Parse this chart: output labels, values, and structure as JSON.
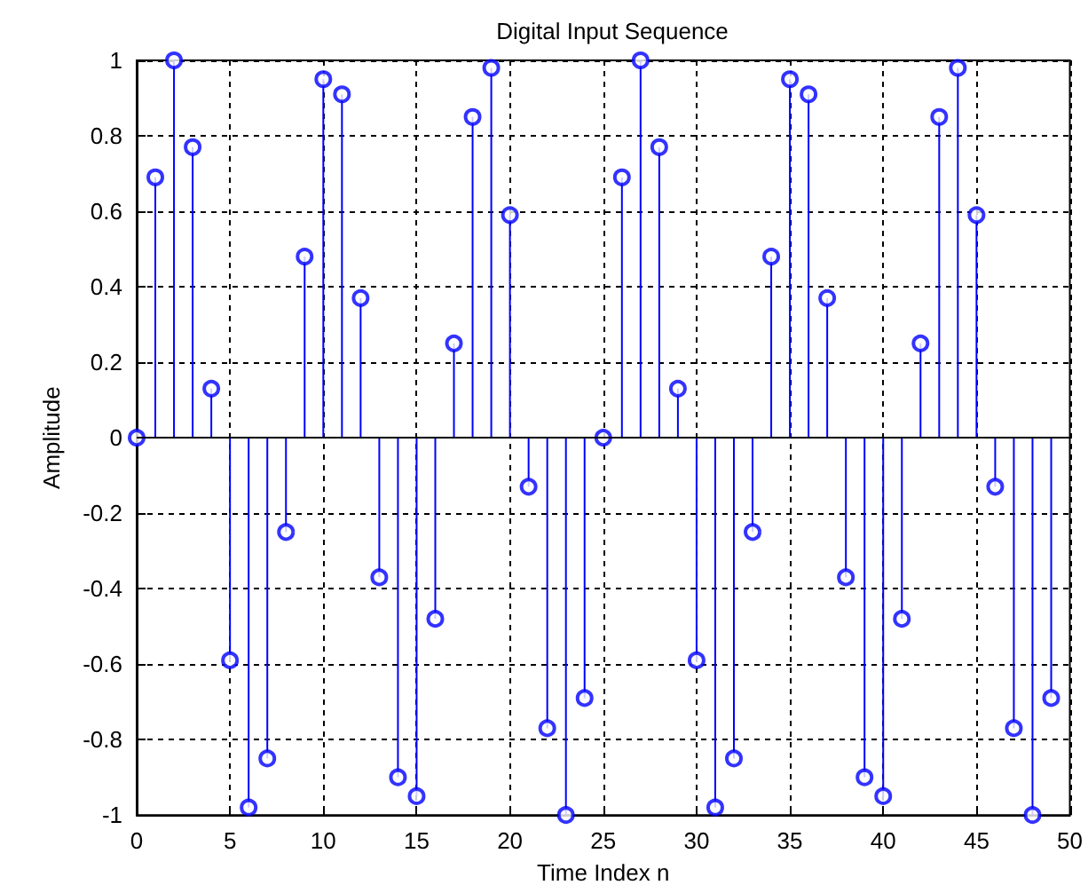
{
  "chart_data": {
    "type": "lollipop",
    "title": "Digital Input Sequence",
    "xlabel": "Time Index n",
    "ylabel": "Amplitude",
    "x": [
      0,
      1,
      2,
      3,
      4,
      5,
      6,
      7,
      8,
      9,
      10,
      11,
      12,
      13,
      14,
      15,
      16,
      17,
      18,
      19,
      20,
      21,
      22,
      23,
      24,
      25,
      26,
      27,
      28,
      29,
      30,
      31,
      32,
      33,
      34,
      35,
      36,
      37,
      38,
      39,
      40,
      41,
      42,
      43,
      44,
      45,
      46,
      47,
      48,
      49
    ],
    "series": [
      {
        "color": "#0000ff",
        "values": [
          0,
          0.69,
          1.0,
          0.77,
          0.13,
          -0.59,
          -0.98,
          -0.85,
          -0.25,
          0.48,
          0.95,
          0.91,
          0.37,
          -0.37,
          -0.9,
          -0.95,
          -0.48,
          0.25,
          0.85,
          0.98,
          0.59,
          -0.13,
          -0.77,
          -1.0,
          -0.69,
          0,
          0.69,
          1.0,
          0.77,
          0.13,
          -0.59,
          -0.98,
          -0.85,
          -0.25,
          0.48,
          0.95,
          0.91,
          0.37,
          -0.37,
          -0.9,
          -0.95,
          -0.48,
          0.25,
          0.85,
          0.98,
          0.59,
          -0.13,
          -0.77,
          -1.0,
          -0.69
        ]
      }
    ],
    "xlim": [
      0,
      50
    ],
    "xticks": [
      0,
      5,
      10,
      15,
      20,
      25,
      30,
      35,
      40,
      45,
      50
    ],
    "ylim": [
      -1,
      1
    ],
    "yticks": [
      -1,
      -0.8,
      -0.6,
      -0.4,
      -0.2,
      0,
      0.2,
      0.4,
      0.6,
      0.8,
      1
    ],
    "grid": true,
    "marker": "circle"
  }
}
